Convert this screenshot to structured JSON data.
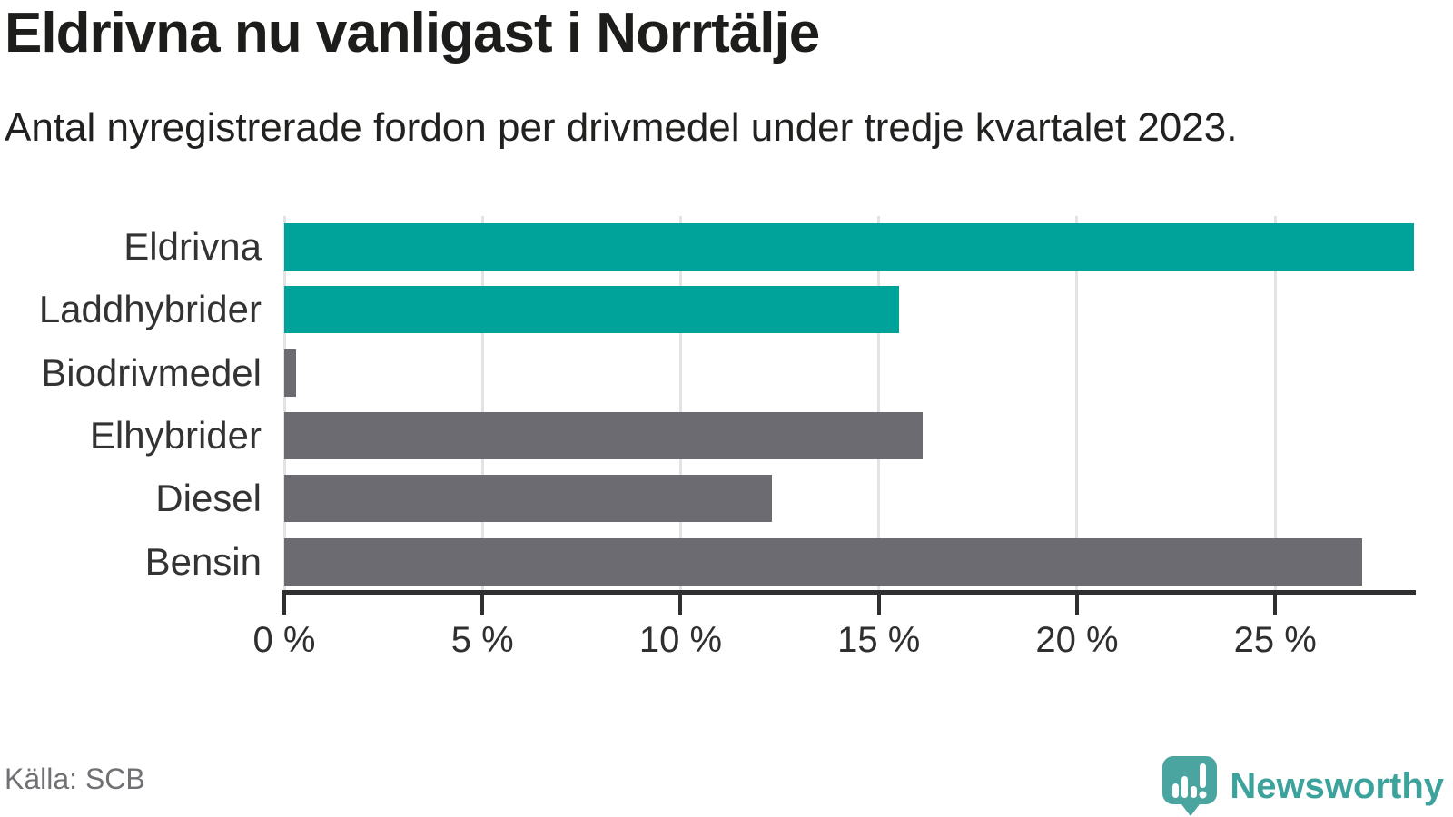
{
  "header": {
    "title": "Eldrivna nu vanligast i Norrtälje",
    "subtitle": "Antal nyregistrerade fordon per drivmedel under tredje kvartalet 2023."
  },
  "chart_data": {
    "type": "bar",
    "orientation": "horizontal",
    "categories": [
      "Eldrivna",
      "Laddhybrider",
      "Biodrivmedel",
      "Elhybrider",
      "Diesel",
      "Bensin"
    ],
    "values": [
      28.5,
      15.5,
      0.3,
      16.1,
      12.3,
      27.2
    ],
    "unit": "%",
    "series_colors": [
      "#00a39a",
      "#00a39a",
      "#6c6b71",
      "#6c6b71",
      "#6c6b71",
      "#6c6b71"
    ],
    "highlight_color": "#00a39a",
    "base_color": "#6c6b71",
    "xlim": [
      0,
      28.5
    ],
    "x_ticks": [
      0,
      5,
      10,
      15,
      20,
      25
    ],
    "x_tick_labels": [
      "0 %",
      "5 %",
      "10 %",
      "15 %",
      "20 %",
      "25 %"
    ],
    "grid": true,
    "grid_color": "#e3e3e4",
    "axis_color": "#2f2f31",
    "value_labels_shown": false,
    "legend_shown": false
  },
  "footer": {
    "source": "Källa: SCB",
    "brand": "Newsworthy",
    "brand_text_color": "#3ba39b",
    "brand_icon_color": "#4aa4a0"
  }
}
